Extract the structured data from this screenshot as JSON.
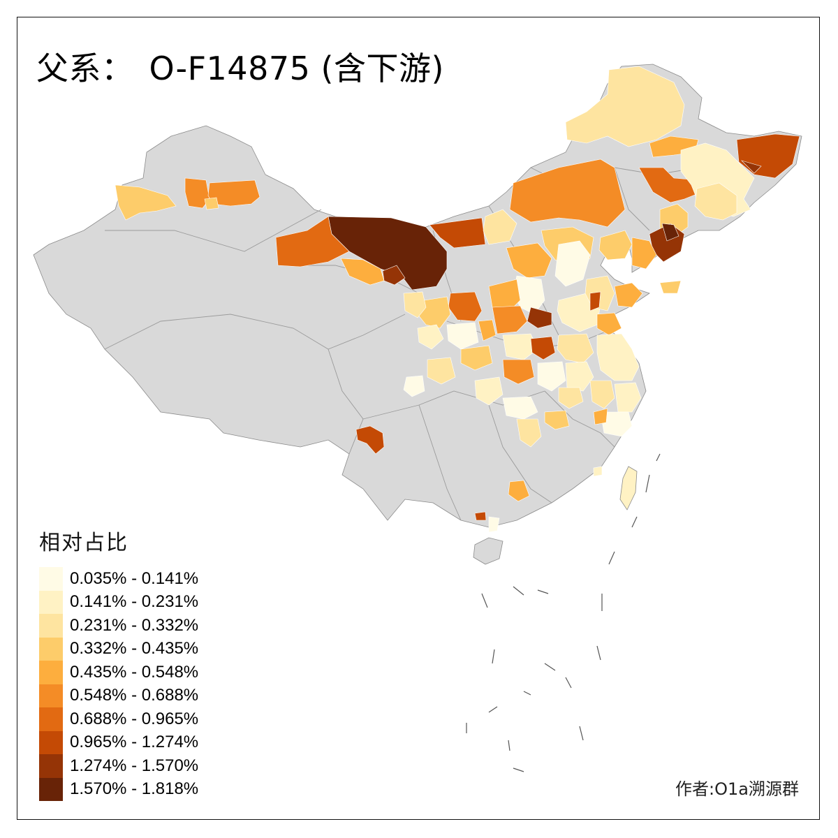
{
  "title": {
    "prefix": "父系：",
    "haplogroup": "O-F14875 (含下游)"
  },
  "legend": {
    "title": "相对占比",
    "items": [
      {
        "label": "0.035% - 0.141%",
        "color": "#fffbe6"
      },
      {
        "label": "0.141% - 0.231%",
        "color": "#fff2c4"
      },
      {
        "label": "0.231% - 0.332%",
        "color": "#fee4a0"
      },
      {
        "label": "0.332% - 0.435%",
        "color": "#fdcc6a"
      },
      {
        "label": "0.435% - 0.548%",
        "color": "#fdae3e"
      },
      {
        "label": "0.548% - 0.688%",
        "color": "#f48c26"
      },
      {
        "label": "0.688% - 0.965%",
        "color": "#e26a12"
      },
      {
        "label": "0.965% - 1.274%",
        "color": "#c44a05"
      },
      {
        "label": "1.274% - 1.570%",
        "color": "#953406"
      },
      {
        "label": "1.570% - 1.818%",
        "color": "#682307"
      }
    ]
  },
  "no_data_color": "#d9d9d9",
  "credit": "作者:O1a溯源群"
}
